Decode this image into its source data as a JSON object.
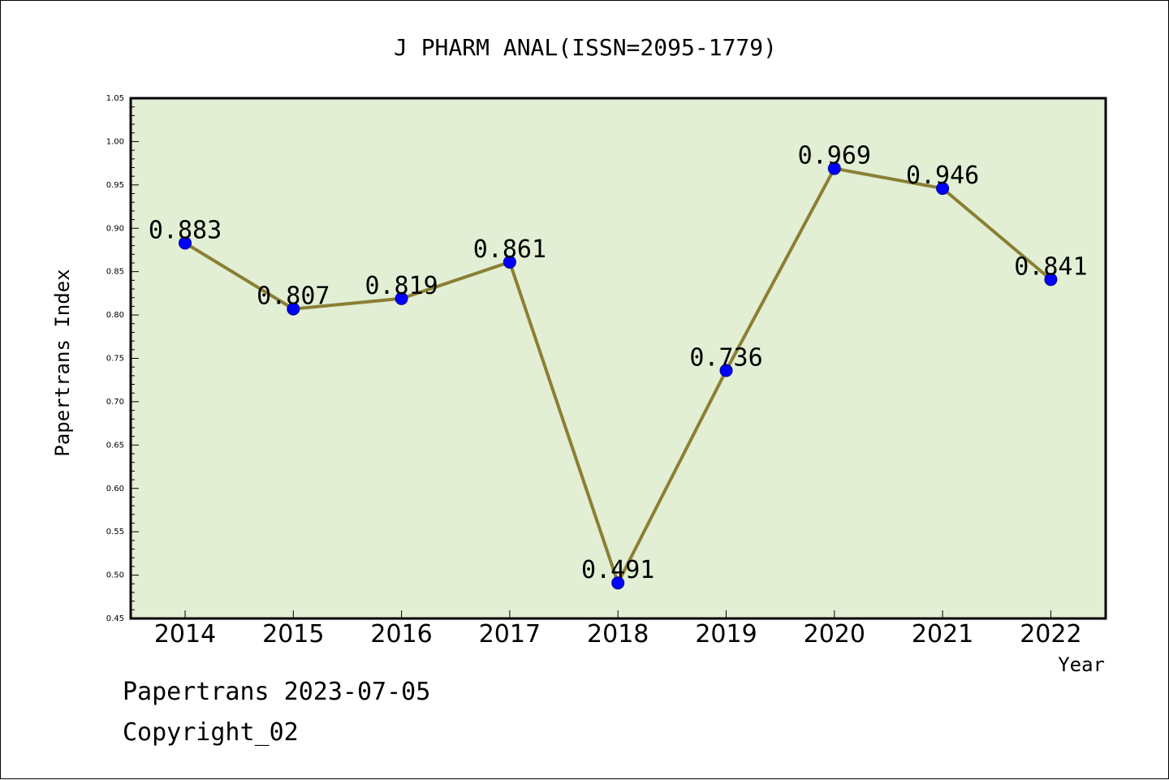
{
  "chart_data": {
    "type": "line",
    "title": "J PHARM ANAL(ISSN=2095-1779)",
    "xlabel": "Year",
    "ylabel": "Papertrans Index",
    "categories": [
      "2014",
      "2015",
      "2016",
      "2017",
      "2018",
      "2019",
      "2020",
      "2021",
      "2022"
    ],
    "values": [
      0.883,
      0.807,
      0.819,
      0.861,
      0.491,
      0.736,
      0.969,
      0.946,
      0.841
    ],
    "data_labels": [
      "0.883",
      "0.807",
      "0.819",
      "0.861",
      "0.491",
      "0.736",
      "0.969",
      "0.946",
      "0.841"
    ],
    "ylim": [
      0.45,
      1.05
    ],
    "yticks": [
      "0.45",
      "0.50",
      "0.55",
      "0.60",
      "0.65",
      "0.70",
      "0.75",
      "0.80",
      "0.85",
      "0.90",
      "0.95",
      "1.00",
      "1.05"
    ],
    "grid": false,
    "colors": {
      "plot_background": "#e2efd4",
      "line": "#8b7f35",
      "marker": "#0000ff"
    }
  },
  "footer": {
    "source": "Papertrans 2023-07-05",
    "copyright": "Copyright_02"
  }
}
